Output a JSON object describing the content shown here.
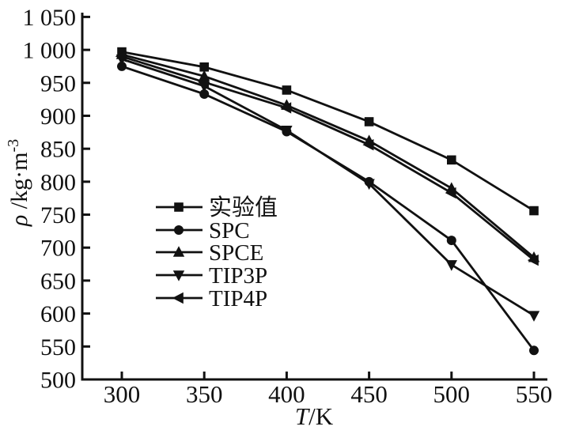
{
  "chart_data": {
    "type": "line",
    "title": "",
    "xlabel": {
      "symbol": "T",
      "unit": "/K"
    },
    "ylabel": {
      "symbol": "ρ",
      "unit": " /kg·m",
      "sup": "-3"
    },
    "xlim": [
      276,
      558
    ],
    "ylim": [
      500,
      1050
    ],
    "x": [
      300,
      350,
      400,
      450,
      500,
      550
    ],
    "x_tick_labels": [
      "300",
      "350",
      "400",
      "450",
      "500",
      "550"
    ],
    "y_tick_values": [
      500,
      550,
      600,
      650,
      700,
      750,
      800,
      850,
      900,
      950,
      1000,
      1050
    ],
    "y_tick_labels": [
      "500",
      "550",
      "600",
      "650",
      "700",
      "750",
      "800",
      "850",
      "900",
      "950",
      "1 000",
      "1 050"
    ],
    "grid": false,
    "legend_position": "inside-left-lower",
    "ink_color": "#111111",
    "background_color": "#ffffff",
    "series": [
      {
        "name": "实验值",
        "marker": "square",
        "values": [
          997,
          974,
          939,
          891,
          833,
          756
        ]
      },
      {
        "name": "SPC",
        "marker": "circle",
        "values": [
          975,
          933,
          876,
          800,
          711,
          544
        ]
      },
      {
        "name": "SPCE",
        "marker": "triangle-up",
        "values": [
          993,
          960,
          916,
          862,
          790,
          685
        ]
      },
      {
        "name": "TIP3P",
        "marker": "triangle-down",
        "values": [
          986,
          945,
          878,
          797,
          674,
          597
        ]
      },
      {
        "name": "TIP4P",
        "marker": "triangle-left",
        "values": [
          990,
          951,
          912,
          856,
          783,
          681
        ]
      }
    ]
  }
}
